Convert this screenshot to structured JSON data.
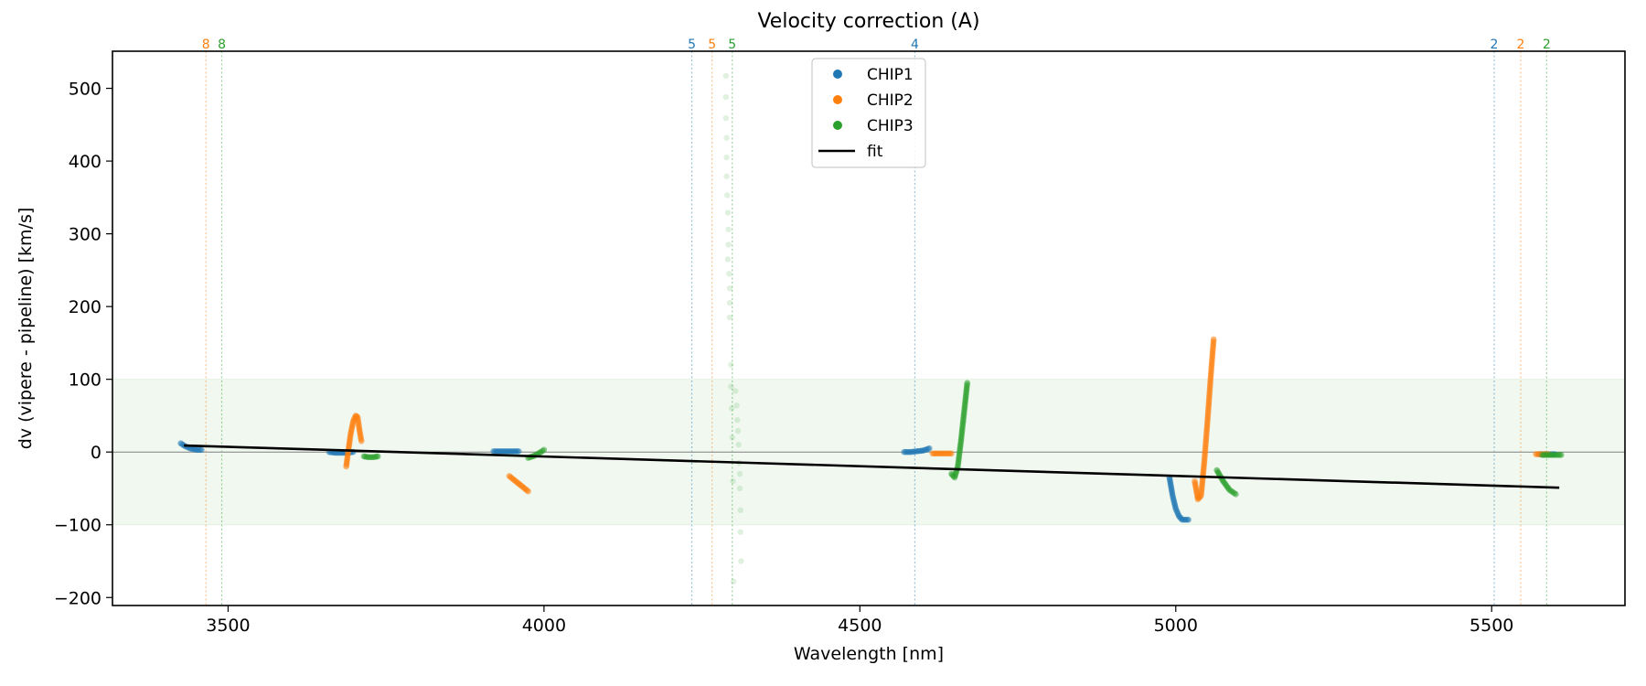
{
  "chart_data": {
    "type": "scatter",
    "title": "Velocity correction (A)",
    "xlabel": "Wavelength [nm]",
    "ylabel": "dv (vipere - pipeline) [km/s]",
    "xlim": [
      3317,
      5711
    ],
    "ylim": [
      -211,
      551
    ],
    "xticks": [
      3500,
      4000,
      4500,
      5000,
      5500
    ],
    "yticks": [
      -200,
      -100,
      0,
      100,
      200,
      300,
      400,
      500
    ],
    "xtick_labels": [
      "3500",
      "4000",
      "4500",
      "5000",
      "5500"
    ],
    "ytick_labels": [
      "−200",
      "−100",
      "0",
      "100",
      "200",
      "300",
      "400",
      "500"
    ],
    "grid": false,
    "legend": {
      "placement": "top-center",
      "entries": [
        {
          "label": "CHIP1",
          "kind": "marker",
          "color": "#1f77b4"
        },
        {
          "label": "CHIP2",
          "kind": "marker",
          "color": "#ff7f0e"
        },
        {
          "label": "CHIP3",
          "kind": "marker",
          "color": "#2ca02c"
        },
        {
          "label": "fit",
          "kind": "line",
          "color": "#000000"
        }
      ]
    },
    "band": {
      "from": -100,
      "to": 100,
      "color": "#2ca02c"
    },
    "zero_line": 0,
    "fit": {
      "x": [
        3430,
        5607
      ],
      "y": [
        9,
        -49
      ],
      "color": "#000000"
    },
    "order_markers": [
      {
        "x": 3465,
        "label": "8",
        "chip": "CHIP2"
      },
      {
        "x": 3490,
        "label": "8",
        "chip": "CHIP3"
      },
      {
        "x": 4234,
        "label": "5",
        "chip": "CHIP1"
      },
      {
        "x": 4266,
        "label": "5",
        "chip": "CHIP2"
      },
      {
        "x": 4298,
        "label": "5",
        "chip": "CHIP3"
      },
      {
        "x": 4587,
        "label": "4",
        "chip": "CHIP1"
      },
      {
        "x": 5504,
        "label": "2",
        "chip": "CHIP1"
      },
      {
        "x": 5546,
        "label": "2",
        "chip": "CHIP2"
      },
      {
        "x": 5587,
        "label": "2",
        "chip": "CHIP3"
      }
    ],
    "series": [
      {
        "name": "CHIP1",
        "color": "#1f77b4",
        "segments": [
          {
            "x": [
              3425,
              3432,
              3440,
              3450,
              3458
            ],
            "y": [
              12,
              8,
              5,
              3,
              3
            ]
          },
          {
            "x": [
              3660,
              3670,
              3680,
              3690,
              3698
            ],
            "y": [
              0,
              -1,
              -1,
              -1,
              0
            ]
          },
          {
            "x": [
              3920,
              3930,
              3940,
              3950,
              3960
            ],
            "y": [
              1,
              1,
              1,
              1,
              1
            ]
          },
          {
            "x": [
              4570,
              4580,
              4590,
              4600,
              4610
            ],
            "y": [
              0,
              0,
              1,
              2,
              5
            ]
          },
          {
            "x": [
              4990,
              4995,
              5000,
              5005,
              5010,
              5020
            ],
            "y": [
              -35,
              -60,
              -78,
              -88,
              -93,
              -93
            ]
          },
          {
            "x": [
              5575,
              5585,
              5600
            ],
            "y": [
              -3,
              -3,
              -3
            ]
          }
        ]
      },
      {
        "name": "CHIP2",
        "color": "#ff7f0e",
        "segments": [
          {
            "x": [
              3687,
              3690,
              3694,
              3698,
              3702,
              3705,
              3708,
              3711
            ],
            "y": [
              -20,
              0,
              25,
              42,
              50,
              48,
              30,
              15
            ]
          },
          {
            "x": [
              3945,
              3955,
              3965,
              3975
            ],
            "y": [
              -33,
              -40,
              -47,
              -54
            ]
          },
          {
            "x": [
              4615,
              4625,
              4635,
              4645
            ],
            "y": [
              -2,
              -2,
              -2,
              -2
            ]
          },
          {
            "x": [
              5030,
              5035,
              5040,
              5045,
              5050,
              5055,
              5060
            ],
            "y": [
              -40,
              -65,
              -60,
              -15,
              40,
              100,
              155
            ]
          },
          {
            "x": [
              5570,
              5580,
              5590
            ],
            "y": [
              -3,
              -3,
              -3
            ]
          }
        ]
      },
      {
        "name": "CHIP3",
        "color": "#2ca02c",
        "segments": [
          {
            "x": [
              3715,
              3722,
              3730,
              3737
            ],
            "y": [
              -6,
              -7,
              -7,
              -6
            ]
          },
          {
            "x": [
              3975,
              3985,
              3995,
              4000
            ],
            "y": [
              -8,
              -5,
              0,
              3
            ]
          },
          {
            "x": [
              4645,
              4650,
              4655,
              4660,
              4665,
              4670
            ],
            "y": [
              -30,
              -35,
              -20,
              15,
              55,
              95
            ]
          },
          {
            "x": [
              5065,
              5075,
              5085,
              5095
            ],
            "y": [
              -25,
              -40,
              -52,
              -58
            ]
          },
          {
            "x": [
              5580,
              5590,
              5600,
              5610
            ],
            "y": [
              -4,
              -4,
              -4,
              -4
            ]
          }
        ]
      },
      {
        "name": "CHIP3 outliers",
        "color": "#2ca02c",
        "faint": true,
        "segments": [
          {
            "x": [
              4288,
              4288,
              4288,
              4289,
              4289,
              4289,
              4290,
              4291,
              4292,
              4292,
              4291,
              4293,
              4294,
              4294,
              4294,
              4296,
              4296,
              4297,
              4298,
              4299,
              4300
            ],
            "y": [
              517,
              488,
              459,
              432,
              405,
              379,
              353,
              329,
              306,
              285,
              265,
              245,
              225,
              205,
              185,
              120,
              90,
              60,
              20,
              -40,
              -178
            ]
          },
          {
            "x": [
              4303,
              4305,
              4306,
              4307,
              4308,
              4309,
              4310,
              4310,
              4311,
              4311,
              4312
            ],
            "y": [
              84,
              64,
              44,
              29,
              10,
              -15,
              -30,
              -50,
              -80,
              -110,
              -150
            ]
          }
        ]
      }
    ]
  }
}
